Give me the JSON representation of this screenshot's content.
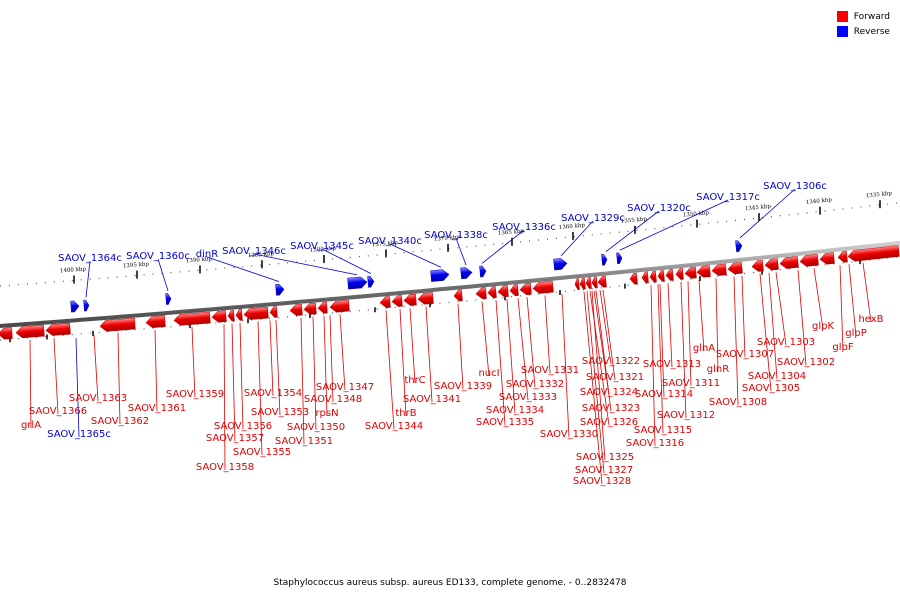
{
  "caption": "Staphylococcus aureus subsp. aureus ED133, complete genome. - 0..2832478",
  "legend": {
    "forward_label": "Forward",
    "reverse_label": "Reverse",
    "forward_color": "#ff0000",
    "reverse_color": "#0000ff"
  },
  "scale_ticks": [
    "1335 kbp",
    "1340 kbp",
    "1345 kbp",
    "1350 kbp",
    "1355 kbp",
    "1360 kbp",
    "1365 kbp",
    "1370 kbp",
    "1375 kbp",
    "1380 kbp",
    "1385 kbp",
    "1390 kbp",
    "1395 kbp",
    "1400 kbp"
  ],
  "forward_genes": [
    "hexB",
    "glpP",
    "glpF",
    "glpK",
    "SAOV_1302",
    "SAOV_1303",
    "SAOV_1304",
    "SAOV_1305",
    "SAOV_1307",
    "SAOV_1308",
    "glnR",
    "glnA",
    "SAOV_1311",
    "SAOV_1312",
    "SAOV_1313",
    "SAOV_1314",
    "SAOV_1315",
    "SAOV_1316",
    "SAOV_1321",
    "SAOV_1322",
    "SAOV_1323",
    "SAOV_1324",
    "SAOV_1325",
    "SAOV_1326",
    "SAOV_1327",
    "SAOV_1328",
    "SAOV_1330",
    "SAOV_1331",
    "SAOV_1332",
    "SAOV_1333",
    "SAOV_1334",
    "SAOV_1335",
    "nucI",
    "SAOV_1339",
    "SAOV_1341",
    "thrC",
    "thrB",
    "SAOV_1344",
    "SAOV_1347",
    "SAOV_1348",
    "rpsN",
    "SAOV_1350",
    "SAOV_1351",
    "SAOV_1353",
    "SAOV_1354",
    "SAOV_1355",
    "SAOV_1356",
    "SAOV_1357",
    "SAOV_1358",
    "SAOV_1359",
    "SAOV_1361",
    "SAOV_1362",
    "SAOV_1363",
    "SAOV_1366",
    "grlA"
  ],
  "reverse_genes": [
    "SAOV_1306c",
    "SAOV_1317c",
    "SAOV_1320c",
    "SAOV_1329c",
    "SAOV_1336c",
    "SAOV_1338c",
    "SAOV_1340c",
    "SAOV_1345c",
    "SAOV_1346c",
    "dinR",
    "SAOV_1360c",
    "SAOV_1364c",
    "SAOV_1365c"
  ]
}
